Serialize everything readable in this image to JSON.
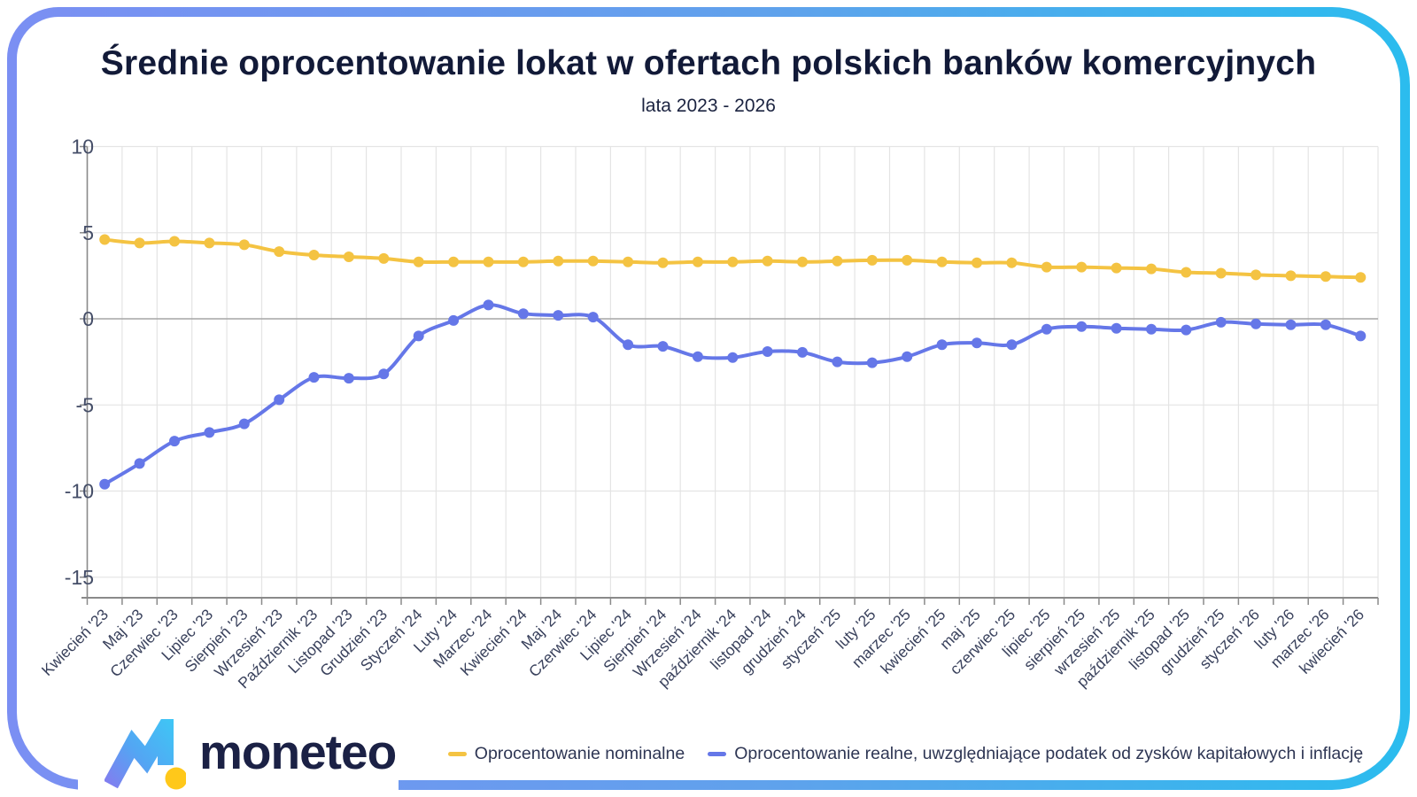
{
  "header": {
    "title": "Średnie oprocentowanie lokat w ofertach polskich banków komercyjnych",
    "subtitle": "lata 2023 - 2026"
  },
  "frame": {
    "gradient_left": "#7B8FF3",
    "gradient_right": "#2BBCEE"
  },
  "chart_data": {
    "type": "line",
    "title": "Średnie oprocentowanie lokat w ofertach polskich banków komercyjnych",
    "subtitle": "lata 2023 - 2026",
    "xlabel": "",
    "ylabel": "",
    "ylim": [
      -16,
      10.2
    ],
    "yticks": [
      10,
      5,
      0,
      -5,
      -10,
      -15
    ],
    "grid": true,
    "legend_position": "bottom",
    "categories": [
      "Kwiecień '23",
      "Maj '23",
      "Czerwiec '23",
      "Lipiec '23",
      "Sierpień '23",
      "Wrzesień '23",
      "Październik '23",
      "Listopad '23",
      "Grudzień '23",
      "Styczeń '24",
      "Luty '24",
      "Marzec '24",
      "Kwiecień '24",
      "Maj '24",
      "Czerwiec '24",
      "Lipiec '24",
      "Sierpień '24",
      "Wrzesień '24",
      "październik '24",
      "listopad '24",
      "grudzień '24",
      "styczeń '25",
      "luty '25",
      "marzec '25",
      "kwiecień '25",
      "maj '25",
      "czerwiec '25",
      "lipiec '25",
      "sierpień '25",
      "wrzesień '25",
      "październik '25",
      "listopad '25",
      "grudzień '25",
      "styczeń '26",
      "luty '26",
      "marzec '26",
      "kwiecień '26"
    ],
    "series": [
      {
        "name": "Oprocentowanie nominalne",
        "color": "#F4C342",
        "values": [
          4.6,
          4.4,
          4.5,
          4.4,
          4.3,
          3.9,
          3.7,
          3.6,
          3.5,
          3.3,
          3.3,
          3.3,
          3.3,
          3.35,
          3.35,
          3.3,
          3.25,
          3.3,
          3.3,
          3.35,
          3.3,
          3.35,
          3.4,
          3.4,
          3.3,
          3.25,
          3.25,
          3.0,
          3.0,
          2.95,
          2.9,
          2.7,
          2.65,
          2.55,
          2.5,
          2.45,
          2.4
        ]
      },
      {
        "name": "Oprocentowanie realne, uwzględniające podatek od zysków kapitałowych i inflację",
        "color": "#6577E8",
        "values": [
          -9.6,
          -8.4,
          -7.1,
          -6.6,
          -6.1,
          -4.7,
          -3.4,
          -3.45,
          -3.2,
          -1.0,
          -0.1,
          0.8,
          0.3,
          0.2,
          0.1,
          -1.5,
          -1.6,
          -2.2,
          -2.25,
          -1.9,
          -1.95,
          -2.5,
          -2.55,
          -2.2,
          -1.5,
          -1.4,
          -1.5,
          -0.6,
          -0.45,
          -0.55,
          -0.6,
          -0.65,
          -0.2,
          -0.3,
          -0.35,
          -0.35,
          -1.0
        ]
      }
    ]
  },
  "logo": {
    "text": "moneteo",
    "text_color": "#1B2145",
    "mark_gradient": [
      "#8878EF",
      "#53A6F3",
      "#3ACDF6"
    ],
    "dot_color": "#FFC81A"
  }
}
